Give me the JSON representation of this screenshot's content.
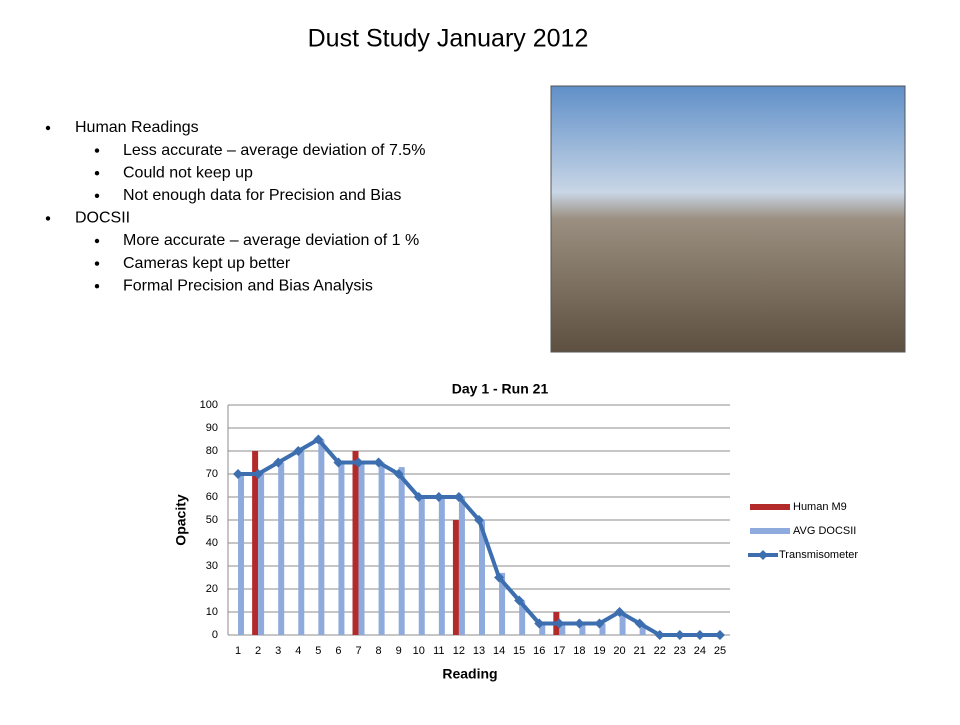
{
  "title": "Dust Study January 2012",
  "bullets": [
    {
      "text": "Human Readings",
      "sub": [
        "Less accurate – average deviation of 7.5%",
        "Could not keep up",
        "Not enough data for Precision and Bias"
      ]
    },
    {
      "text": "DOCSII",
      "sub": [
        "More accurate – average deviation of 1 %",
        "Cameras kept up better",
        "Formal Precision and Bias Analysis"
      ]
    }
  ],
  "chart_data": {
    "type": "bar",
    "title": "Day 1 - Run 21",
    "x_label": "Reading",
    "y_label": "Opacity",
    "categories": [
      "1",
      "2",
      "3",
      "4",
      "5",
      "6",
      "7",
      "8",
      "9",
      "10",
      "11",
      "12",
      "13",
      "14",
      "15",
      "16",
      "17",
      "18",
      "19",
      "20",
      "21",
      "22",
      "23",
      "24",
      "25"
    ],
    "series": [
      {
        "name": "Human M9",
        "color": "#b22a2a",
        "values": [
          null,
          80,
          null,
          null,
          null,
          null,
          80,
          null,
          null,
          null,
          null,
          50,
          null,
          null,
          null,
          null,
          10,
          null,
          null,
          null,
          null,
          null,
          null,
          null,
          null
        ]
      },
      {
        "name": "AVG DOCSII",
        "color": "#8faadc",
        "values": [
          70,
          70,
          75,
          80,
          85,
          75,
          75,
          75,
          73,
          60,
          60,
          60,
          50,
          27,
          15,
          5,
          5,
          5,
          5,
          10,
          5,
          0,
          0,
          0,
          0
        ]
      },
      {
        "name": "Transmisometer",
        "color": "#3d6fb0",
        "type": "line",
        "values": [
          70,
          70,
          75,
          80,
          85,
          75,
          75,
          75,
          70,
          60,
          60,
          60,
          50,
          25,
          15,
          5,
          5,
          5,
          5,
          10,
          5,
          0,
          0,
          0,
          0
        ]
      }
    ],
    "ylim": [
      0,
      100
    ],
    "yticks": [
      0,
      10,
      20,
      30,
      40,
      50,
      60,
      70,
      80,
      90,
      100
    ],
    "grid": true,
    "legend": "right"
  }
}
